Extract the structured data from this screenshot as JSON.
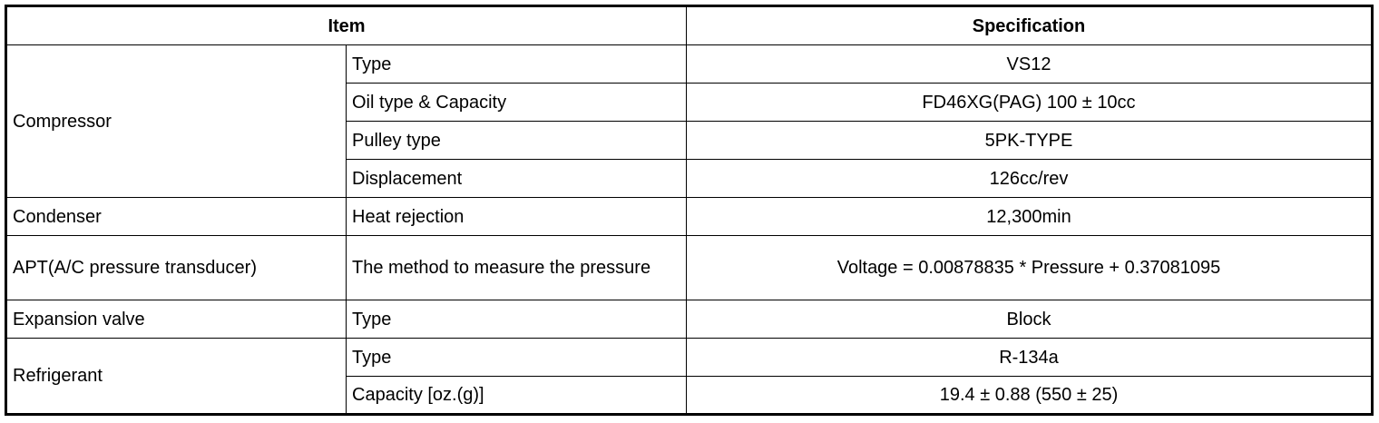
{
  "header": {
    "item": "Item",
    "specification": "Specification"
  },
  "groups": [
    {
      "name": "Compressor",
      "rows": [
        {
          "item": "Type",
          "spec": "VS12"
        },
        {
          "item": "Oil type & Capacity",
          "spec": "FD46XG(PAG) 100 ± 10cc"
        },
        {
          "item": "Pulley type",
          "spec": "5PK-TYPE"
        },
        {
          "item": "Displacement",
          "spec": "126cc/rev"
        }
      ]
    },
    {
      "name": "Condenser",
      "rows": [
        {
          "item": "Heat rejection",
          "spec": "12,300min"
        }
      ]
    },
    {
      "name": "APT(A/C pressure transducer)",
      "rows": [
        {
          "item": "The method to measure the pressure",
          "spec": "Voltage = 0.00878835 * Pressure + 0.37081095"
        }
      ]
    },
    {
      "name": "Expansion valve",
      "rows": [
        {
          "item": "Type",
          "spec": "Block"
        }
      ]
    },
    {
      "name": "Refrigerant",
      "rows": [
        {
          "item": "Type",
          "spec": "R-134a"
        },
        {
          "item": "Capacity [oz.(g)]",
          "spec": "19.4 ± 0.88 (550 ± 25)"
        }
      ]
    }
  ]
}
